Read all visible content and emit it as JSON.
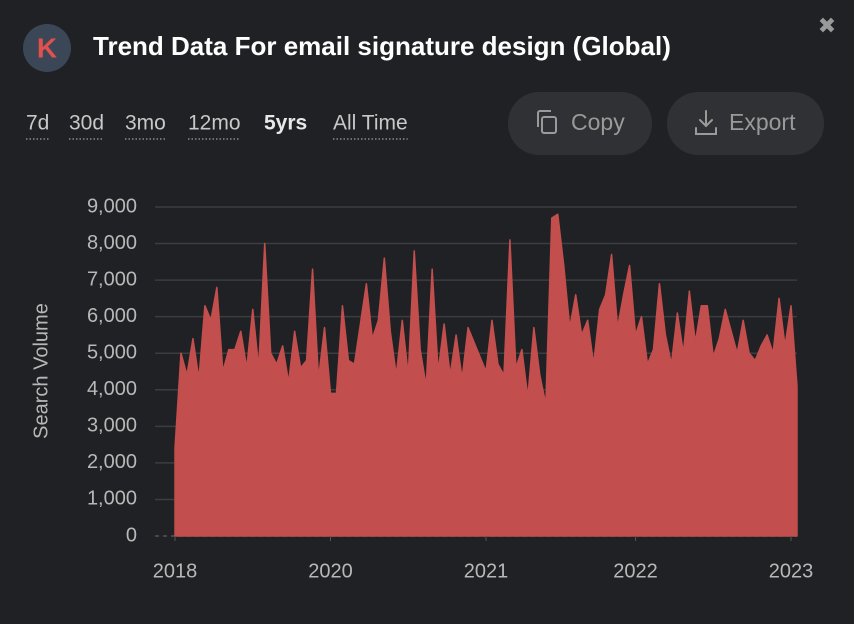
{
  "header": {
    "logo": "K",
    "title": "Trend Data For email signature design (Global)",
    "close": "✖"
  },
  "ranges": [
    "7d",
    "30d",
    "3mo",
    "12mo",
    "5yrs",
    "All Time"
  ],
  "selected_range": 4,
  "buttons": [
    "Copy",
    "Export"
  ],
  "chart_data": {
    "type": "area",
    "ylabel": "Search Volume",
    "color": "#c24f4d",
    "values": [
      2400,
      5000,
      4400,
      5400,
      4300,
      6300,
      5900,
      6800,
      4500,
      5100,
      5100,
      5600,
      4600,
      6200,
      4600,
      8000,
      5000,
      4700,
      5200,
      4200,
      5600,
      4600,
      4800,
      7300,
      4300,
      5700,
      3900,
      3900,
      6300,
      4800,
      4700,
      5800,
      6900,
      5400,
      5900,
      7600,
      5600,
      4400,
      5900,
      4400,
      7800,
      5100,
      4100,
      7300,
      4500,
      5800,
      4400,
      5500,
      4300,
      5700,
      5300,
      4900,
      4500,
      5900,
      4700,
      4400,
      8100,
      4600,
      5100,
      3800,
      5700,
      4400,
      3600,
      8700,
      8800,
      7400,
      5700,
      6600,
      5500,
      5900,
      4700,
      6200,
      6600,
      7700,
      5700,
      6600,
      7400,
      5500,
      6000,
      4700,
      5100,
      6900,
      5500,
      4700,
      6100,
      5000,
      6700,
      5300,
      6300,
      6300,
      4900,
      5400,
      6200,
      5600,
      5000,
      5900,
      5000,
      4800,
      5200,
      5500,
      5000,
      6500,
      5200,
      6300,
      4100
    ],
    "xlim": [
      0,
      104
    ],
    "xticks": [
      {
        "value": 0,
        "label": "2018"
      },
      {
        "value": 26,
        "label": "2020"
      },
      {
        "value": 52,
        "label": "2021"
      },
      {
        "value": 77,
        "label": "2022"
      },
      {
        "value": 103,
        "label": "2023"
      }
    ],
    "ylim": [
      0,
      9000
    ],
    "yticks": [
      0,
      {
        "value": 1000,
        "label": "1,000"
      },
      {
        "value": 2000,
        "label": "2,000"
      },
      {
        "value": 3000,
        "label": "3,000"
      },
      {
        "value": 4000,
        "label": "4,000"
      },
      {
        "value": 5000,
        "label": "5,000"
      },
      {
        "value": 6000,
        "label": "6,000"
      },
      {
        "value": 7000,
        "label": "7,000"
      },
      {
        "value": 8000,
        "label": "8,000"
      },
      {
        "value": 9000,
        "label": "9,000"
      }
    ],
    "grid": true
  }
}
